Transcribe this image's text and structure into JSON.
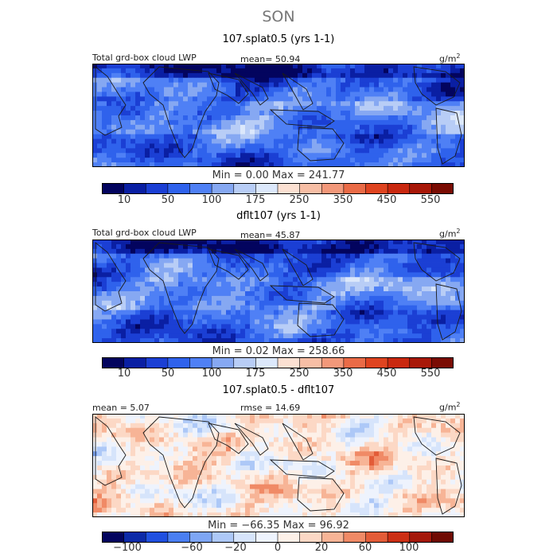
{
  "season": "SON",
  "colors": {
    "abs": [
      "#03045e",
      "#0a1fa3",
      "#1b3fd4",
      "#2f62ec",
      "#4f80f5",
      "#86a8f2",
      "#b8cdf6",
      "#dce8fb",
      "#fbe0d2",
      "#f7bea5",
      "#f2987a",
      "#ea6b47",
      "#df4420",
      "#c9280f",
      "#a81808",
      "#7a0c03"
    ],
    "diff": [
      "#03045e",
      "#0c2aa8",
      "#2050e0",
      "#4a7ff2",
      "#7ea6f4",
      "#adc8f7",
      "#d6e4fb",
      "#eef3fd",
      "#fdf0e8",
      "#fcd8c5",
      "#f7b496",
      "#f08a66",
      "#e35c38",
      "#cc2f14",
      "#a4180a",
      "#700b03"
    ]
  },
  "panels": [
    {
      "title": "107.splat0.5 (yrs 1-1)",
      "left_label": "Total grd-box cloud LWP",
      "center_label": "mean=  50.94",
      "units": "g/m",
      "units_sup": "2",
      "min_max": "Min =   0.00  Max = 241.77",
      "ticks": [
        "10",
        "50",
        "100",
        "175",
        "250",
        "350",
        "450",
        "550"
      ]
    },
    {
      "title": "dflt107 (yrs 1-1)",
      "left_label": "Total grd-box cloud LWP",
      "center_label": "mean=  45.87",
      "units": "g/m",
      "units_sup": "2",
      "min_max": "Min =   0.02  Max = 258.66",
      "ticks": [
        "10",
        "50",
        "100",
        "175",
        "250",
        "350",
        "450",
        "550"
      ]
    },
    {
      "title": "107.splat0.5 - dflt107",
      "left_label": "mean =   5.07",
      "center_label": "rmse =  14.69",
      "units": "g/m",
      "units_sup": "2",
      "min_max": "Min = −66.35  Max =  96.92",
      "ticks": [
        "−100",
        "−60",
        "−20",
        "0",
        "20",
        "60",
        "100"
      ]
    }
  ],
  "chart_data": [
    {
      "type": "heatmap",
      "title": "107.splat0.5 (yrs 1-1)",
      "variable": "Total grd-box cloud LWP",
      "units": "g/m2",
      "mean": 50.94,
      "min": 0.0,
      "max": 241.77,
      "colorbar_ticks": [
        10,
        50,
        100,
        175,
        250,
        350,
        450,
        550
      ]
    },
    {
      "type": "heatmap",
      "title": "dflt107 (yrs 1-1)",
      "variable": "Total grd-box cloud LWP",
      "units": "g/m2",
      "mean": 45.87,
      "min": 0.02,
      "max": 258.66,
      "colorbar_ticks": [
        10,
        50,
        100,
        175,
        250,
        350,
        450,
        550
      ]
    },
    {
      "type": "heatmap",
      "title": "107.splat0.5 - dflt107",
      "units": "g/m2",
      "mean": 5.07,
      "rmse": 14.69,
      "min": -66.35,
      "max": 96.92,
      "colorbar_ticks": [
        -100,
        -60,
        -20,
        0,
        20,
        60,
        100
      ]
    }
  ]
}
